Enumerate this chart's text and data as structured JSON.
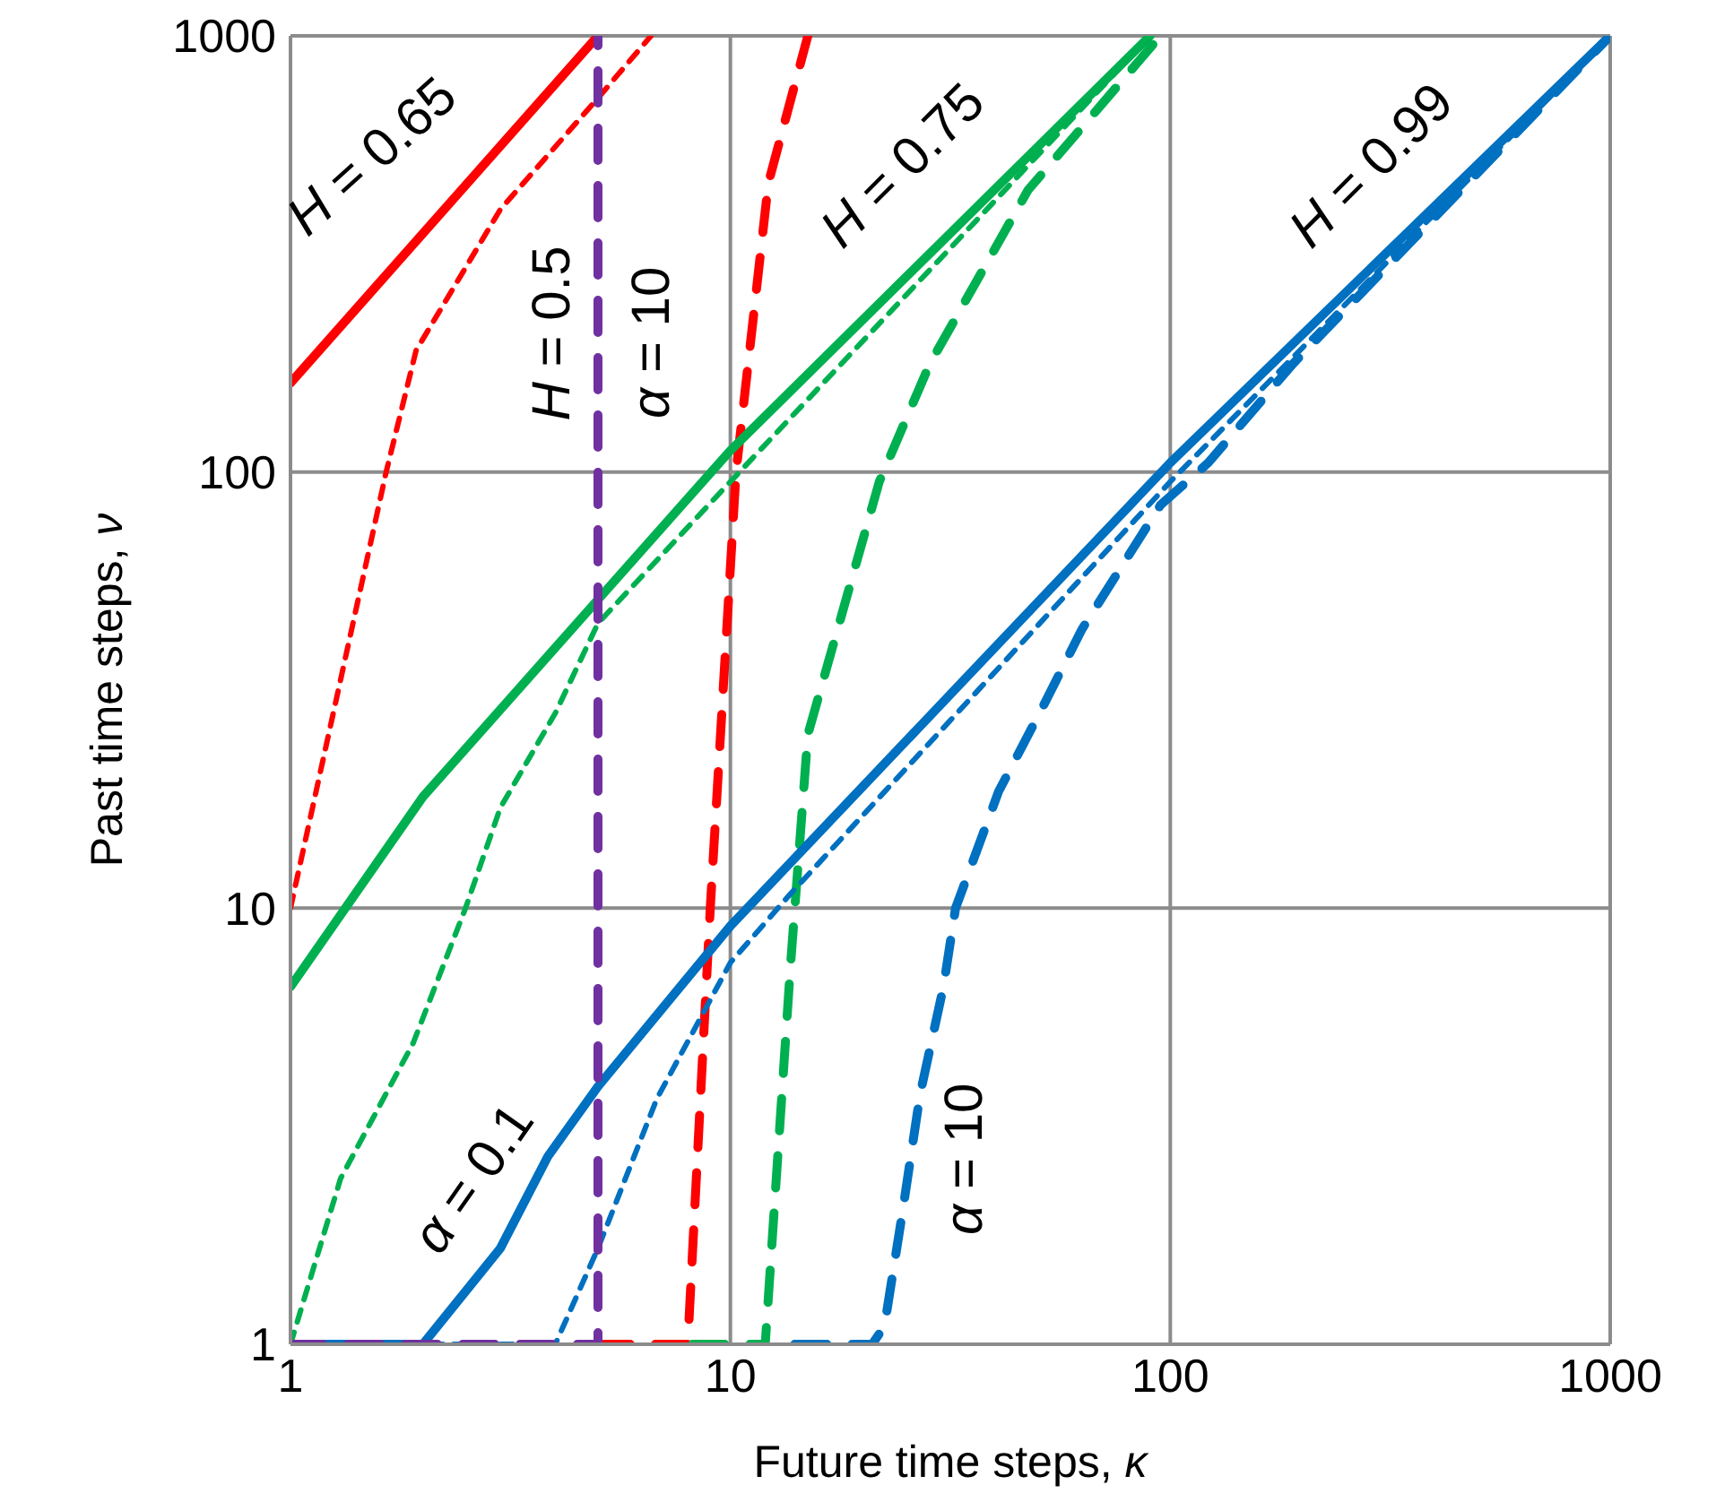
{
  "chart_data": {
    "type": "line",
    "xlabel": "Future time steps, κ",
    "ylabel": "Past time steps, ν",
    "log": "xy",
    "xlim": [
      1,
      1000
    ],
    "ylim": [
      1,
      1000
    ],
    "xticks": [
      1,
      10,
      100,
      1000
    ],
    "yticks": [
      1,
      10,
      100,
      1000
    ],
    "grid": true,
    "legend": false,
    "marker": "none",
    "series": [
      {
        "color": "#ff0000",
        "line_style": "solid",
        "x": [
          1,
          5
        ],
        "values": [
          160,
          1000
        ]
      },
      {
        "color": "#ff0000",
        "line_style": "dotted",
        "x": [
          1,
          1.27,
          1.65,
          1.93,
          3,
          5,
          6.6
        ],
        "values": [
          10,
          30,
          100,
          190,
          400,
          720,
          1000
        ]
      },
      {
        "color": "#ff0000",
        "line_style": "dashed",
        "x": [
          5,
          8,
          9,
          10.3,
          12.2,
          15
        ],
        "values": [
          1,
          1,
          10,
          100,
          460,
          1000
        ]
      },
      {
        "color": "#00b050",
        "line_style": "solid",
        "x": [
          1,
          2,
          10,
          90
        ],
        "values": [
          6.6,
          18,
          112,
          1000
        ]
      },
      {
        "color": "#00b050",
        "line_style": "dotted",
        "x": [
          1,
          1.3,
          1.9,
          2.5,
          3,
          4,
          5,
          10,
          90
        ],
        "values": [
          1,
          2.4,
          4.9,
          10,
          17,
          28,
          45,
          95,
          1000
        ]
      },
      {
        "color": "#00b050",
        "line_style": "dashed",
        "x": [
          8.2,
          12,
          13.7,
          15,
          21.8,
          28.4,
          47.5,
          95
        ],
        "values": [
          1,
          1,
          7.4,
          25,
          95,
          177,
          443,
          1000
        ]
      },
      {
        "color": "#0070c0",
        "line_style": "solid",
        "x": [
          1,
          2,
          3,
          3.85,
          5,
          10,
          100,
          1000
        ],
        "values": [
          1,
          1,
          1.66,
          2.7,
          3.9,
          9.1,
          105,
          1000
        ]
      },
      {
        "color": "#0070c0",
        "line_style": "dotted",
        "x": [
          1,
          4,
          5,
          6.8,
          10,
          13.6,
          100,
          1000
        ],
        "values": [
          1,
          1,
          1.66,
          3.65,
          7.5,
          10.7,
          95,
          1000
        ]
      },
      {
        "color": "#0070c0",
        "line_style": "dashed",
        "x": [
          14,
          21,
          22.4,
          24.6,
          27,
          30.5,
          32.5,
          40.7,
          51,
          63,
          95,
          122,
          190,
          1000
        ],
        "values": [
          1,
          1,
          1.1,
          2,
          3.75,
          6.6,
          10,
          18.5,
          28.6,
          43.6,
          84,
          105,
          177,
          1000
        ]
      },
      {
        "color": "#7030a0",
        "line_style": "dashed",
        "x": [
          1,
          5,
          5
        ],
        "values": [
          1,
          1,
          1000
        ]
      }
    ],
    "annotations": [
      "H = 0.65",
      "H = 0.5",
      "α = 10",
      "H = 0.75",
      "H = 0.99",
      "α = 0.1",
      "α = 10"
    ]
  }
}
